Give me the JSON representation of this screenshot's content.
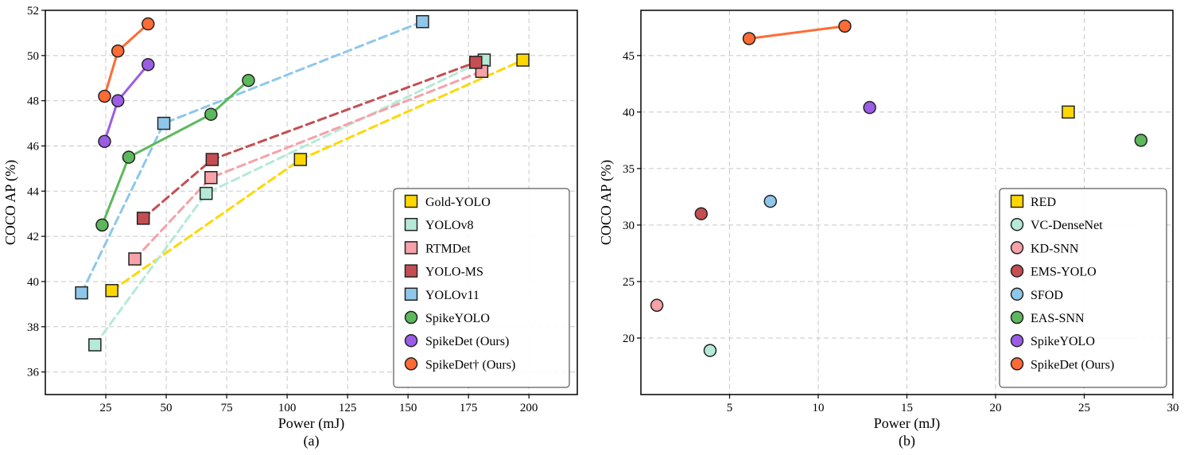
{
  "chart_data": [
    {
      "type": "scatter",
      "panel_label": "(a)",
      "xlabel": "Power (mJ)",
      "ylabel": "COCO AP (%)",
      "xlim": [
        0,
        220
      ],
      "ylim": [
        35,
        52
      ],
      "xticks": [
        25,
        50,
        75,
        100,
        125,
        150,
        175,
        200
      ],
      "yticks": [
        36,
        38,
        40,
        42,
        44,
        46,
        48,
        50,
        52
      ],
      "grid": true,
      "legend_position": "bottom-right",
      "series": [
        {
          "name": "Gold-YOLO",
          "marker": "square",
          "line": "dashed",
          "color": "#FFD700",
          "x": [
            27.5,
            105.5,
            197.5
          ],
          "y": [
            39.6,
            45.4,
            49.8
          ]
        },
        {
          "name": "YOLOv8",
          "marker": "square",
          "line": "dashed",
          "color": "#B5EAD7",
          "x": [
            20.5,
            66.5,
            181.5
          ],
          "y": [
            37.2,
            43.9,
            49.8
          ]
        },
        {
          "name": "RTMDet",
          "marker": "square",
          "line": "dashed",
          "color": "#F7A1A8",
          "x": [
            37.0,
            68.5,
            180.5
          ],
          "y": [
            41.0,
            44.6,
            49.3
          ]
        },
        {
          "name": "YOLO-MS",
          "marker": "square",
          "line": "dashed",
          "color": "#C44E52",
          "x": [
            40.5,
            69.0,
            178.0
          ],
          "y": [
            42.8,
            45.4,
            49.7
          ]
        },
        {
          "name": "YOLOv11",
          "marker": "square",
          "line": "dashed",
          "color": "#8EC7EA",
          "x": [
            15.0,
            49.0,
            156.0
          ],
          "y": [
            39.5,
            47.0,
            51.5
          ]
        },
        {
          "name": "SpikeYOLO",
          "marker": "circle",
          "line": "solid",
          "color": "#5CB85C",
          "x": [
            23.5,
            34.5,
            68.5,
            84.0
          ],
          "y": [
            42.5,
            45.5,
            47.4,
            48.9
          ]
        },
        {
          "name": "SpikeDet (Ours)",
          "marker": "circle",
          "line": "solid",
          "color": "#9B5DE5",
          "x": [
            24.5,
            30.0,
            42.5
          ],
          "y": [
            46.2,
            48.0,
            49.6
          ]
        },
        {
          "name": "SpikeDet† (Ours)",
          "marker": "circle",
          "line": "solid",
          "color": "#FF6B35",
          "x": [
            24.5,
            30.0,
            42.5
          ],
          "y": [
            48.2,
            50.2,
            51.4
          ]
        }
      ]
    },
    {
      "type": "scatter",
      "panel_label": "(b)",
      "xlabel": "Power (mJ)",
      "ylabel": "COCO AP (%)",
      "xlim": [
        0,
        30
      ],
      "ylim": [
        15,
        49
      ],
      "xticks": [
        5,
        10,
        15,
        20,
        25,
        30
      ],
      "yticks": [
        20,
        25,
        30,
        35,
        40,
        45
      ],
      "grid": true,
      "legend_position": "bottom-right",
      "series": [
        {
          "name": "RED",
          "marker": "square",
          "line": "none",
          "color": "#FFD700",
          "x": [
            24.1
          ],
          "y": [
            40.0
          ]
        },
        {
          "name": "VC-DenseNet",
          "marker": "circle",
          "line": "none",
          "color": "#B5EAD7",
          "x": [
            3.9
          ],
          "y": [
            18.9
          ]
        },
        {
          "name": "KD-SNN",
          "marker": "circle",
          "line": "none",
          "color": "#F7A1A8",
          "x": [
            0.9
          ],
          "y": [
            22.9
          ]
        },
        {
          "name": "EMS-YOLO",
          "marker": "circle",
          "line": "none",
          "color": "#C44E52",
          "x": [
            3.4
          ],
          "y": [
            31.0
          ]
        },
        {
          "name": "SFOD",
          "marker": "circle",
          "line": "none",
          "color": "#8EC7EA",
          "x": [
            7.3
          ],
          "y": [
            32.1
          ]
        },
        {
          "name": "EAS-SNN",
          "marker": "circle",
          "line": "none",
          "color": "#5CB85C",
          "x": [
            28.2
          ],
          "y": [
            37.5
          ]
        },
        {
          "name": "SpikeYOLO",
          "marker": "circle",
          "line": "none",
          "color": "#9B5DE5",
          "x": [
            12.9
          ],
          "y": [
            40.4
          ]
        },
        {
          "name": "SpikeDet (Ours)",
          "marker": "circle",
          "line": "solid",
          "color": "#FF6B35",
          "x": [
            6.1,
            11.5
          ],
          "y": [
            46.5,
            47.6
          ]
        }
      ]
    }
  ]
}
